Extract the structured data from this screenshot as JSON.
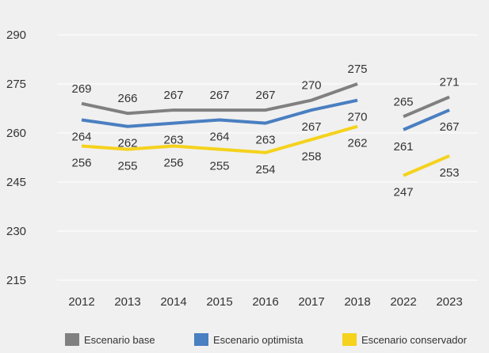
{
  "chart_data": {
    "type": "line",
    "title": "",
    "xlabel": "",
    "ylabel": "",
    "categories": [
      "2012",
      "2013",
      "2014",
      "2015",
      "2016",
      "2017",
      "2018",
      "2022",
      "2023"
    ],
    "yticks": [
      "290",
      "275",
      "260",
      "245",
      "230",
      "215"
    ],
    "ylim": [
      215,
      290
    ],
    "grid": true,
    "legend_position": "bottom",
    "series": [
      {
        "name": "Escenario base",
        "color": "#808080",
        "values": [
          269,
          266,
          267,
          267,
          267,
          270,
          275,
          265,
          271
        ],
        "labels": [
          "269",
          "266",
          "267",
          "267",
          "267",
          "270",
          "275",
          "265",
          "271"
        ]
      },
      {
        "name": "Escenario optimista",
        "color": "#4a7fc1",
        "values": [
          264,
          262,
          263,
          264,
          263,
          267,
          270,
          261,
          267
        ],
        "labels": [
          "264",
          "262",
          "263",
          "264",
          "263",
          "267",
          "270",
          "261",
          "267"
        ]
      },
      {
        "name": "Escenario conservador",
        "color": "#f5d21c",
        "values": [
          256,
          255,
          256,
          255,
          254,
          258,
          262,
          247,
          253
        ],
        "labels": [
          "256",
          "255",
          "256",
          "255",
          "254",
          "258",
          "262",
          "247",
          "253"
        ]
      }
    ],
    "segments": [
      [
        0,
        6
      ],
      [
        7,
        8
      ]
    ]
  }
}
